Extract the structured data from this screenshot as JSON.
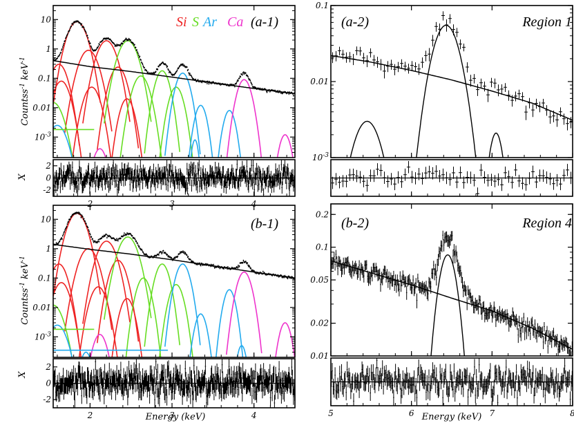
{
  "colors": {
    "Si": "#ee2222",
    "S": "#66dd22",
    "Ar": "#22aaee",
    "Ca": "#ee33cc",
    "model": "#000000"
  },
  "legend": [
    {
      "label": "Si",
      "color": "#ee2222"
    },
    {
      "label": "S",
      "color": "#66dd22"
    },
    {
      "label": "Ar",
      "color": "#22aaee"
    },
    {
      "label": "Ca",
      "color": "#ee33cc"
    }
  ],
  "shared_labels": {
    "xlabel_left": "Energy (keV)",
    "xlabel_right": "Energy (keV)",
    "ylabel_top": "Countss-1 keV-1",
    "ylabel_bottom": "Countss-1 keV-1",
    "resid_label": "X"
  },
  "chart_data": [
    {
      "id": "a-1",
      "label": "(a-1)",
      "type": "line",
      "yscale": "log",
      "xlim": [
        1.55,
        4.5
      ],
      "ylim": [
        0.0002,
        30
      ],
      "x_ticks": [
        "2",
        "3",
        "4"
      ],
      "x_tick_values": [
        2,
        3,
        4
      ],
      "y_ticks": [
        "10",
        "1",
        "0.1",
        "0.01",
        "10-3"
      ],
      "y_tick_values": [
        10,
        1,
        0.1,
        0.01,
        0.001
      ],
      "continuum": [
        [
          1.55,
          0.4
        ],
        [
          2.0,
          0.25
        ],
        [
          2.5,
          0.17
        ],
        [
          3.0,
          0.11
        ],
        [
          3.5,
          0.07
        ],
        [
          4.0,
          0.045
        ],
        [
          4.5,
          0.03
        ]
      ],
      "peaks": [
        [
          1.84,
          8.5,
          0.08
        ],
        [
          2.2,
          2.1,
          0.08
        ],
        [
          2.46,
          1.9,
          0.08
        ],
        [
          2.89,
          0.22,
          0.05
        ],
        [
          3.13,
          0.21,
          0.05
        ],
        [
          3.88,
          0.1,
          0.05
        ]
      ],
      "lines": {
        "Si": [
          [
            1.84,
            8.5,
            0.08
          ],
          [
            1.98,
            0.9,
            0.08
          ],
          [
            2.2,
            1.9,
            0.08
          ],
          [
            2.34,
            0.24,
            0.07
          ],
          [
            1.62,
            0.3,
            0.07
          ],
          [
            1.65,
            0.08,
            0.07
          ],
          [
            2.02,
            0.05,
            0.07
          ],
          [
            2.45,
            0.02,
            0.06
          ]
        ],
        "S": [
          [
            2.46,
            1.9,
            0.08
          ],
          [
            2.88,
            0.18,
            0.06
          ],
          [
            2.62,
            0.12,
            0.07
          ],
          [
            3.05,
            0.05,
            0.06
          ],
          [
            1.55,
            0.015,
            0.08
          ]
        ],
        "Ar": [
          [
            3.13,
            0.15,
            0.06
          ],
          [
            3.35,
            0.012,
            0.05
          ],
          [
            3.7,
            0.008,
            0.05
          ],
          [
            1.6,
            0.0025,
            0.08
          ],
          [
            3.28,
            0.0008,
            0.03
          ]
        ],
        "Ca": [
          [
            3.88,
            0.09,
            0.06
          ],
          [
            4.38,
            0.0012,
            0.05
          ],
          [
            2.12,
            0.0004,
            0.06
          ]
        ]
      },
      "floor_segments": [
        {
          "element": "S",
          "x0": 1.55,
          "x1": 2.05,
          "y": 0.0018
        }
      ],
      "resid_range": [
        -3,
        3
      ],
      "resid_ticks": [
        "2",
        "0",
        "-2"
      ],
      "resid_tick_values": [
        2,
        0,
        -2
      ]
    },
    {
      "id": "b-1",
      "label": "(b-1)",
      "type": "line",
      "yscale": "log",
      "xlim": [
        1.55,
        4.5
      ],
      "ylim": [
        0.0002,
        30
      ],
      "x_ticks": [
        "2",
        "3",
        "4"
      ],
      "x_tick_values": [
        2,
        3,
        4
      ],
      "y_ticks": [
        "10",
        "1",
        "0.1",
        "0.01",
        "10-3"
      ],
      "y_tick_values": [
        10,
        1,
        0.1,
        0.01,
        0.001
      ],
      "continuum": [
        [
          1.55,
          1.4
        ],
        [
          2.0,
          0.95
        ],
        [
          2.5,
          0.65
        ],
        [
          3.0,
          0.42
        ],
        [
          3.5,
          0.26
        ],
        [
          4.0,
          0.16
        ],
        [
          4.5,
          0.1
        ]
      ],
      "peaks": [
        [
          1.84,
          16,
          0.08
        ],
        [
          2.2,
          2.0,
          0.08
        ],
        [
          2.46,
          2.6,
          0.08
        ],
        [
          2.89,
          0.3,
          0.05
        ],
        [
          3.13,
          0.4,
          0.05
        ],
        [
          3.88,
          0.18,
          0.05
        ]
      ],
      "lines": {
        "Si": [
          [
            1.84,
            16,
            0.08
          ],
          [
            1.98,
            1.0,
            0.08
          ],
          [
            2.2,
            1.8,
            0.08
          ],
          [
            2.34,
            0.4,
            0.07
          ],
          [
            1.62,
            0.3,
            0.07
          ],
          [
            1.65,
            0.07,
            0.07
          ],
          [
            2.1,
            0.05,
            0.07
          ],
          [
            2.45,
            0.02,
            0.06
          ]
        ],
        "S": [
          [
            2.46,
            2.5,
            0.08
          ],
          [
            2.88,
            0.3,
            0.06
          ],
          [
            2.65,
            0.1,
            0.06
          ],
          [
            3.05,
            0.06,
            0.06
          ],
          [
            1.55,
            0.012,
            0.08
          ]
        ],
        "Ar": [
          [
            3.13,
            0.3,
            0.06
          ],
          [
            3.7,
            0.04,
            0.05
          ],
          [
            3.35,
            0.006,
            0.05
          ],
          [
            1.95,
            0.0003,
            0.05
          ],
          [
            1.6,
            0.0025,
            0.08
          ],
          [
            3.85,
            0.0005,
            0.04
          ]
        ],
        "Ca": [
          [
            3.88,
            0.16,
            0.06
          ],
          [
            4.38,
            0.003,
            0.05
          ],
          [
            2.12,
            0.0012,
            0.06
          ]
        ]
      },
      "floor_segments": [
        {
          "element": "S",
          "x0": 1.55,
          "x1": 2.05,
          "y": 0.0018
        },
        {
          "element": "Ar",
          "x0": 1.55,
          "x1": 2.95,
          "y": 0.00035
        }
      ],
      "resid_range": [
        -3,
        3
      ],
      "resid_ticks": [
        "2",
        "0",
        "-2"
      ],
      "resid_tick_values": [
        2,
        0,
        -2
      ]
    },
    {
      "id": "a-2",
      "label": "(a-2)",
      "region": "Region 1",
      "type": "line",
      "yscale": "log",
      "xlim": [
        5,
        8
      ],
      "ylim": [
        0.001,
        0.1
      ],
      "x_ticks": [],
      "x_tick_values": [
        5,
        6,
        7,
        8
      ],
      "y_ticks": [
        "0.1",
        "0.01",
        "10-3"
      ],
      "y_tick_values": [
        0.1,
        0.01,
        0.001
      ],
      "continuum": [
        [
          5.0,
          0.022
        ],
        [
          5.5,
          0.018
        ],
        [
          6.0,
          0.014
        ],
        [
          6.5,
          0.0105
        ],
        [
          7.0,
          0.0075
        ],
        [
          7.5,
          0.0052
        ],
        [
          8.0,
          0.0031
        ]
      ],
      "peaks": [
        [
          6.42,
          0.055,
          0.13
        ],
        [
          7.05,
          0.0018,
          0.07
        ],
        [
          5.45,
          0.003,
          0.14
        ]
      ],
      "components": [
        [
          5.45,
          0.003,
          0.14
        ],
        [
          6.43,
          0.055,
          0.13
        ],
        [
          7.05,
          0.0021,
          0.07
        ]
      ],
      "resid_range": [
        -3,
        3
      ]
    },
    {
      "id": "b-2",
      "label": "(b-2)",
      "region": "Region 4",
      "type": "line",
      "yscale": "log",
      "xlim": [
        5,
        8
      ],
      "ylim": [
        0.01,
        0.25
      ],
      "x_ticks": [
        "5",
        "6",
        "7",
        "8"
      ],
      "x_tick_values": [
        5,
        6,
        7,
        8
      ],
      "y_ticks": [
        "0.2",
        "0.1",
        "0.05",
        "0.02",
        "0.01"
      ],
      "y_tick_values": [
        0.2,
        0.1,
        0.05,
        0.02,
        0.01
      ],
      "continuum": [
        [
          5.0,
          0.075
        ],
        [
          5.5,
          0.058
        ],
        [
          6.0,
          0.045
        ],
        [
          6.5,
          0.034
        ],
        [
          7.0,
          0.026
        ],
        [
          7.5,
          0.018
        ],
        [
          8.0,
          0.0115
        ]
      ],
      "peaks": [
        [
          6.45,
          0.09,
          0.1
        ]
      ],
      "components": [
        [
          6.45,
          0.085,
          0.1
        ]
      ],
      "resid_range": [
        -3,
        3
      ]
    }
  ]
}
